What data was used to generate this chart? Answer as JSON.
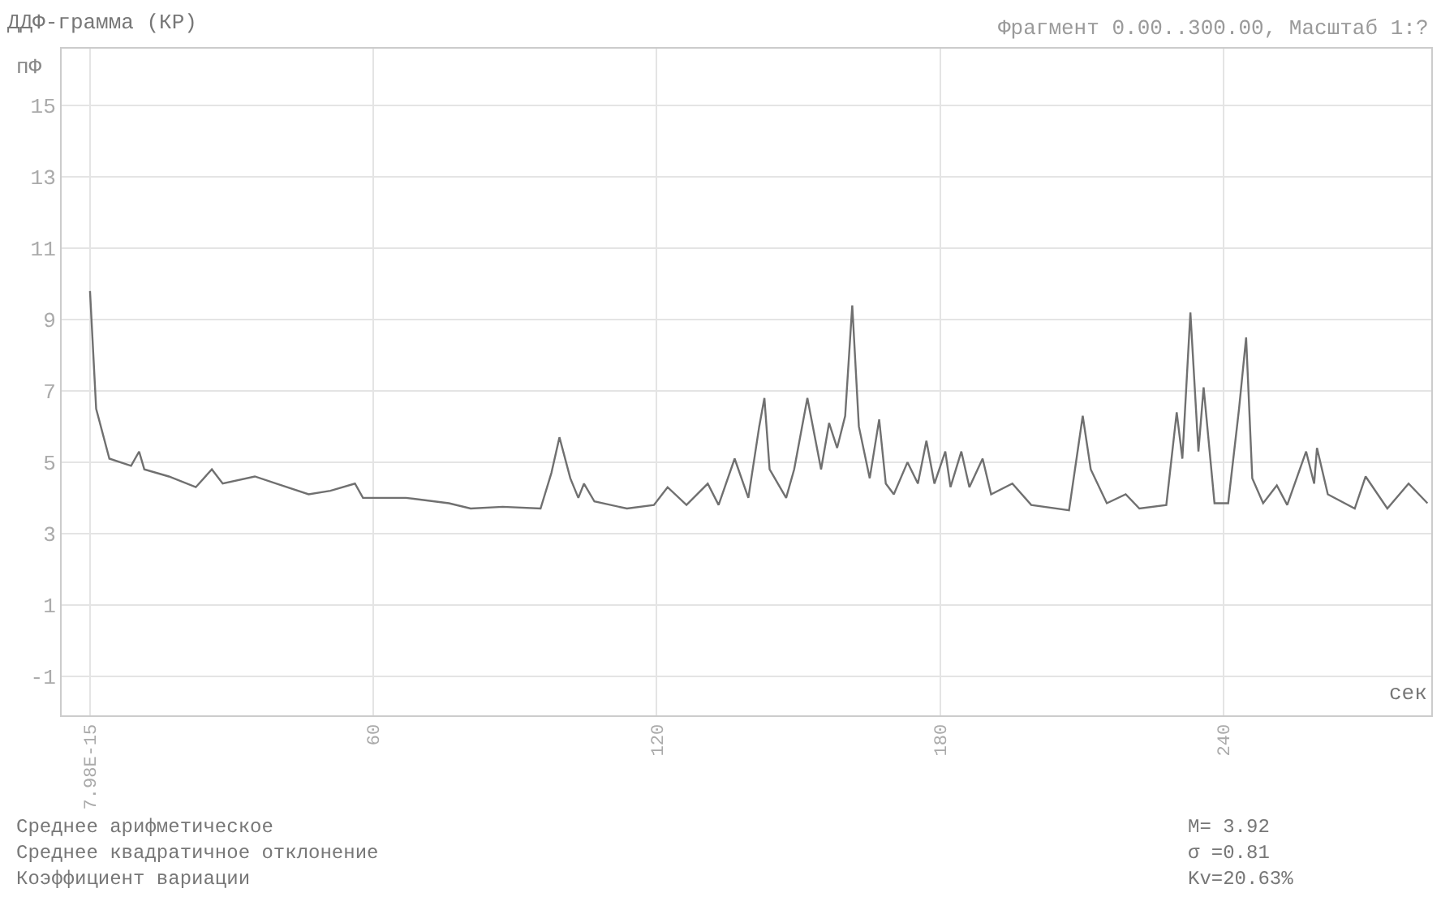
{
  "chart_data": {
    "type": "line",
    "title": "ДДФ-грамма (КР)",
    "subtitle": "Фрагмент 0.00..300.00, Масштаб 1:?",
    "xlabel": "сек",
    "ylabel": "пФ",
    "x": [
      0,
      1.3,
      4.1,
      8.7,
      10.4,
      11.5,
      16.7,
      22.4,
      25.8,
      28.1,
      34.9,
      39.5,
      46.3,
      50.9,
      56.1,
      57.8,
      66.9,
      76,
      80.6,
      87.4,
      95.4,
      97.7,
      99.4,
      101.7,
      103.4,
      104.6,
      106.8,
      113.7,
      119.4,
      122.3,
      126.3,
      130.8,
      133.1,
      136.5,
      139.4,
      141.7,
      142.8,
      143.9,
      147.4,
      149.1,
      151.9,
      154.8,
      156.5,
      158.2,
      159.9,
      161.4,
      162.8,
      165.1,
      167.1,
      168.5,
      170.2,
      173.1,
      175.3,
      177.1,
      178.8,
      181.1,
      182.2,
      184.5,
      186.2,
      189,
      190.8,
      195.3,
      199.3,
      207.3,
      210.2,
      211.9,
      215.3,
      219.3,
      222.2,
      227.9,
      230.1,
      231.3,
      233,
      234.7,
      235.8,
      238.1,
      241,
      243.3,
      244.8,
      246.1,
      248.4,
      251.3,
      253.5,
      257.5,
      259.2,
      259.8,
      262.1,
      267.8,
      270.1,
      274.7,
      279.2,
      283.2
    ],
    "series": [
      {
        "color": "#707070",
        "values": [
          9.8,
          6.5,
          5.1,
          4.9,
          5.3,
          4.8,
          4.6,
          4.3,
          4.8,
          4.4,
          4.6,
          4.4,
          4.1,
          4.2,
          4.4,
          4.0,
          4.0,
          3.85,
          3.7,
          3.75,
          3.7,
          4.7,
          5.7,
          4.55,
          4.0,
          4.4,
          3.9,
          3.7,
          3.8,
          4.3,
          3.8,
          4.4,
          3.8,
          5.1,
          4.0,
          6.0,
          6.8,
          4.8,
          4.0,
          4.8,
          6.8,
          4.8,
          6.1,
          5.4,
          6.3,
          9.4,
          6.0,
          4.55,
          6.2,
          4.4,
          4.1,
          5.0,
          4.4,
          5.6,
          4.4,
          5.3,
          4.3,
          5.3,
          4.3,
          5.1,
          4.1,
          4.4,
          3.8,
          3.65,
          6.3,
          4.8,
          3.85,
          4.1,
          3.7,
          3.8,
          6.4,
          5.1,
          9.2,
          5.3,
          7.1,
          3.85,
          3.85,
          6.5,
          8.5,
          4.55,
          3.85,
          4.35,
          3.8,
          5.3,
          4.4,
          5.4,
          4.1,
          3.7,
          4.6,
          3.7,
          4.4,
          3.85
        ]
      }
    ],
    "xlim": [
      -6,
      284
    ],
    "xticks": [
      {
        "value": 0,
        "label": "7.98E-15"
      },
      60,
      120,
      180,
      240
    ],
    "ylim": [
      -2.1,
      16.6
    ],
    "yticks": [
      -1,
      1,
      3,
      5,
      7,
      9,
      11,
      13,
      15
    ],
    "grid": true,
    "marker": "none",
    "line_style": "solid",
    "annotations": [
      "Среднее арифметическое",
      "M= 3.92",
      "Среднее квадратичное отклонение",
      "σ =0.81",
      "Коэффициент вариации",
      "Kv=20.63%"
    ]
  }
}
